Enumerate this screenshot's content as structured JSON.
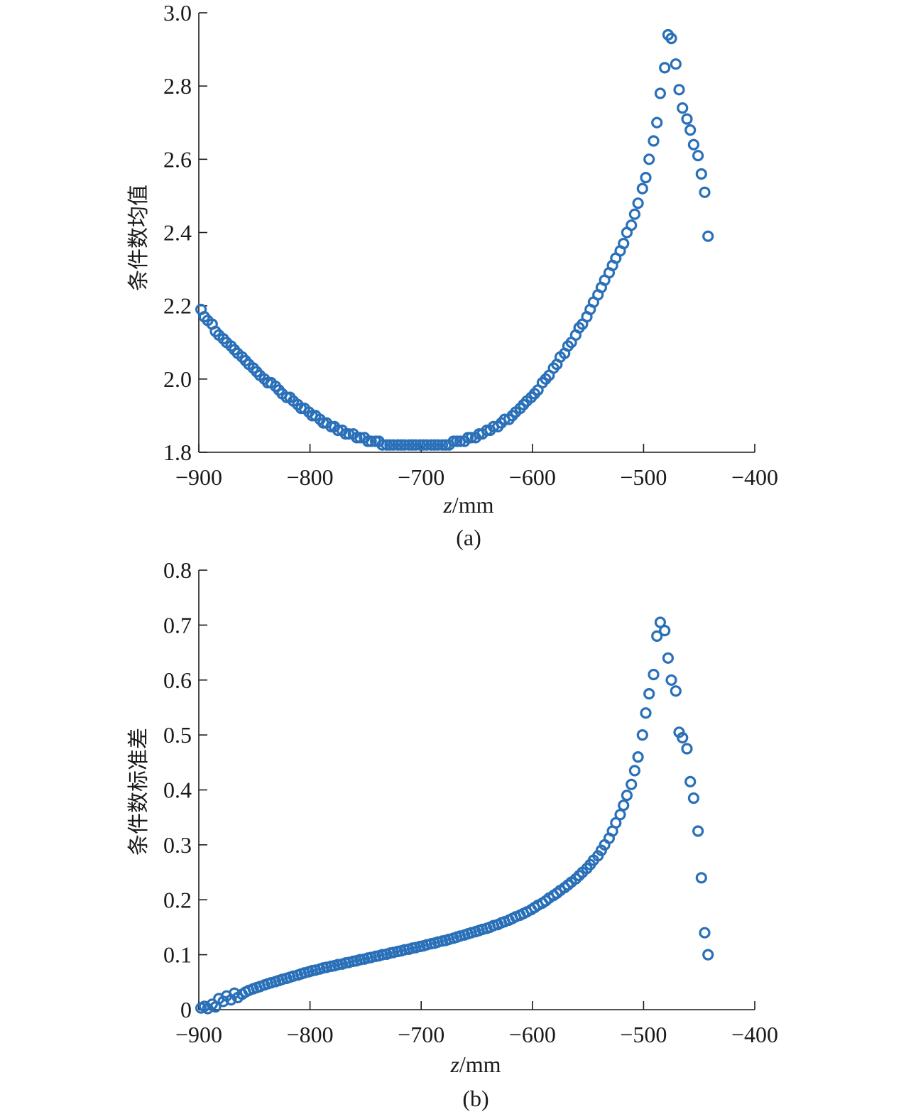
{
  "colors": {
    "marker": "#2a70b8",
    "axis": "#1a1a1a"
  },
  "chart_data": [
    {
      "type": "scatter",
      "panel_label": "(a)",
      "ylabel": "条件数均值",
      "xlabel_var": "z",
      "xlabel_unit": "/mm",
      "xlim": [
        -900,
        -400
      ],
      "ylim": [
        1.8,
        3.0
      ],
      "xticks": [
        -900,
        -800,
        -700,
        -600,
        -500,
        -400
      ],
      "xtick_labels": [
        "−900",
        "−800",
        "−700",
        "−600",
        "−500",
        "−400"
      ],
      "yticks": [
        1.8,
        2.0,
        2.2,
        2.4,
        2.6,
        2.8,
        3.0
      ],
      "ytick_labels": [
        "1.8",
        "2.0",
        "2.2",
        "2.4",
        "2.6",
        "2.8",
        "3.0"
      ],
      "series": [
        {
          "marker": "circle",
          "x": [
            -898,
            -895,
            -892,
            -888,
            -885,
            -882,
            -878,
            -875,
            -871,
            -868,
            -865,
            -861,
            -858,
            -855,
            -851,
            -848,
            -845,
            -841,
            -838,
            -835,
            -831,
            -828,
            -825,
            -821,
            -818,
            -815,
            -811,
            -808,
            -805,
            -801,
            -798,
            -795,
            -791,
            -788,
            -785,
            -781,
            -778,
            -775,
            -771,
            -768,
            -765,
            -761,
            -758,
            -755,
            -751,
            -748,
            -745,
            -741,
            -738,
            -735,
            -731,
            -728,
            -725,
            -721,
            -718,
            -715,
            -711,
            -708,
            -705,
            -701,
            -698,
            -695,
            -691,
            -688,
            -685,
            -681,
            -678,
            -675,
            -671,
            -668,
            -665,
            -661,
            -658,
            -655,
            -651,
            -648,
            -645,
            -641,
            -638,
            -635,
            -631,
            -628,
            -625,
            -621,
            -618,
            -615,
            -611,
            -608,
            -605,
            -601,
            -598,
            -595,
            -591,
            -588,
            -585,
            -581,
            -578,
            -575,
            -571,
            -568,
            -565,
            -561,
            -558,
            -555,
            -551,
            -548,
            -545,
            -541,
            -538,
            -535,
            -531,
            -528,
            -525,
            -521,
            -518,
            -515,
            -511,
            -508,
            -505,
            -501,
            -498,
            -495,
            -491,
            -488,
            -485,
            -481,
            -478,
            -475,
            -471,
            -468,
            -465,
            -461,
            -458,
            -455,
            -451,
            -448,
            -445,
            -442
          ],
          "y": [
            2.19,
            2.17,
            2.16,
            2.15,
            2.13,
            2.12,
            2.11,
            2.1,
            2.09,
            2.08,
            2.07,
            2.06,
            2.05,
            2.04,
            2.03,
            2.02,
            2.01,
            2.0,
            1.99,
            1.99,
            1.98,
            1.97,
            1.96,
            1.95,
            1.95,
            1.94,
            1.93,
            1.92,
            1.92,
            1.91,
            1.9,
            1.9,
            1.89,
            1.88,
            1.88,
            1.87,
            1.87,
            1.86,
            1.86,
            1.85,
            1.85,
            1.85,
            1.84,
            1.84,
            1.84,
            1.83,
            1.83,
            1.83,
            1.83,
            1.82,
            1.82,
            1.82,
            1.82,
            1.82,
            1.82,
            1.82,
            1.82,
            1.82,
            1.82,
            1.82,
            1.82,
            1.82,
            1.82,
            1.82,
            1.82,
            1.82,
            1.82,
            1.82,
            1.83,
            1.83,
            1.83,
            1.83,
            1.84,
            1.84,
            1.84,
            1.85,
            1.85,
            1.86,
            1.86,
            1.87,
            1.87,
            1.88,
            1.89,
            1.89,
            1.9,
            1.91,
            1.92,
            1.93,
            1.94,
            1.95,
            1.96,
            1.97,
            1.99,
            2.0,
            2.01,
            2.03,
            2.04,
            2.06,
            2.07,
            2.09,
            2.1,
            2.12,
            2.14,
            2.15,
            2.17,
            2.19,
            2.21,
            2.23,
            2.25,
            2.27,
            2.29,
            2.31,
            2.33,
            2.35,
            2.37,
            2.4,
            2.42,
            2.45,
            2.48,
            2.52,
            2.55,
            2.6,
            2.65,
            2.7,
            2.78,
            2.85,
            2.94,
            2.93,
            2.86,
            2.79,
            2.74,
            2.71,
            2.68,
            2.64,
            2.61,
            2.56,
            2.51,
            2.39
          ]
        }
      ]
    },
    {
      "type": "scatter",
      "panel_label": "(b)",
      "ylabel": "条件数标准差",
      "xlabel_var": "z",
      "xlabel_unit": "/mm",
      "xlim": [
        -900,
        -400
      ],
      "ylim": [
        0,
        0.8
      ],
      "xticks": [
        -900,
        -800,
        -700,
        -600,
        -500,
        -400
      ],
      "xtick_labels": [
        "−900",
        "−800",
        "−700",
        "−600",
        "−500",
        "−400"
      ],
      "yticks": [
        0,
        0.1,
        0.2,
        0.3,
        0.4,
        0.5,
        0.6,
        0.7,
        0.8
      ],
      "ytick_labels": [
        "0",
        "0.1",
        "0.2",
        "0.3",
        "0.4",
        "0.5",
        "0.6",
        "0.7",
        "0.8"
      ],
      "series": [
        {
          "marker": "circle",
          "x": [
            -898,
            -895,
            -892,
            -888,
            -885,
            -882,
            -878,
            -875,
            -871,
            -868,
            -865,
            -861,
            -858,
            -855,
            -851,
            -848,
            -845,
            -841,
            -838,
            -835,
            -831,
            -828,
            -825,
            -821,
            -818,
            -815,
            -811,
            -808,
            -805,
            -801,
            -798,
            -795,
            -791,
            -788,
            -785,
            -781,
            -778,
            -775,
            -771,
            -768,
            -765,
            -761,
            -758,
            -755,
            -751,
            -748,
            -745,
            -741,
            -738,
            -735,
            -731,
            -728,
            -725,
            -721,
            -718,
            -715,
            -711,
            -708,
            -705,
            -701,
            -698,
            -695,
            -691,
            -688,
            -685,
            -681,
            -678,
            -675,
            -671,
            -668,
            -665,
            -661,
            -658,
            -655,
            -651,
            -648,
            -645,
            -641,
            -638,
            -635,
            -631,
            -628,
            -625,
            -621,
            -618,
            -615,
            -611,
            -608,
            -605,
            -601,
            -598,
            -595,
            -591,
            -588,
            -585,
            -581,
            -578,
            -575,
            -571,
            -568,
            -565,
            -561,
            -558,
            -555,
            -551,
            -548,
            -545,
            -541,
            -538,
            -535,
            -531,
            -528,
            -525,
            -521,
            -518,
            -515,
            -511,
            -508,
            -505,
            -501,
            -498,
            -495,
            -491,
            -488,
            -485,
            -481,
            -478,
            -475,
            -471,
            -468,
            -465,
            -461,
            -458,
            -455,
            -451,
            -448,
            -445,
            -442
          ],
          "y": [
            0.003,
            0.006,
            0.002,
            0.01,
            0.005,
            0.02,
            0.015,
            0.025,
            0.018,
            0.03,
            0.022,
            0.028,
            0.032,
            0.035,
            0.038,
            0.04,
            0.042,
            0.045,
            0.047,
            0.049,
            0.051,
            0.053,
            0.055,
            0.057,
            0.059,
            0.061,
            0.063,
            0.065,
            0.067,
            0.069,
            0.071,
            0.072,
            0.074,
            0.076,
            0.077,
            0.079,
            0.08,
            0.082,
            0.083,
            0.085,
            0.086,
            0.088,
            0.089,
            0.091,
            0.092,
            0.094,
            0.095,
            0.097,
            0.098,
            0.1,
            0.101,
            0.103,
            0.104,
            0.106,
            0.107,
            0.109,
            0.11,
            0.112,
            0.113,
            0.115,
            0.116,
            0.118,
            0.12,
            0.121,
            0.123,
            0.125,
            0.126,
            0.128,
            0.13,
            0.132,
            0.134,
            0.136,
            0.138,
            0.14,
            0.142,
            0.144,
            0.146,
            0.148,
            0.15,
            0.153,
            0.155,
            0.158,
            0.16,
            0.163,
            0.166,
            0.169,
            0.172,
            0.175,
            0.178,
            0.182,
            0.186,
            0.19,
            0.194,
            0.198,
            0.203,
            0.208,
            0.212,
            0.217,
            0.222,
            0.227,
            0.232,
            0.238,
            0.244,
            0.25,
            0.257,
            0.264,
            0.272,
            0.28,
            0.29,
            0.3,
            0.312,
            0.325,
            0.34,
            0.355,
            0.372,
            0.39,
            0.41,
            0.435,
            0.46,
            0.5,
            0.54,
            0.575,
            0.61,
            0.68,
            0.705,
            0.69,
            0.64,
            0.6,
            0.58,
            0.505,
            0.495,
            0.475,
            0.415,
            0.385,
            0.325,
            0.24,
            0.14,
            0.1
          ]
        }
      ]
    }
  ]
}
